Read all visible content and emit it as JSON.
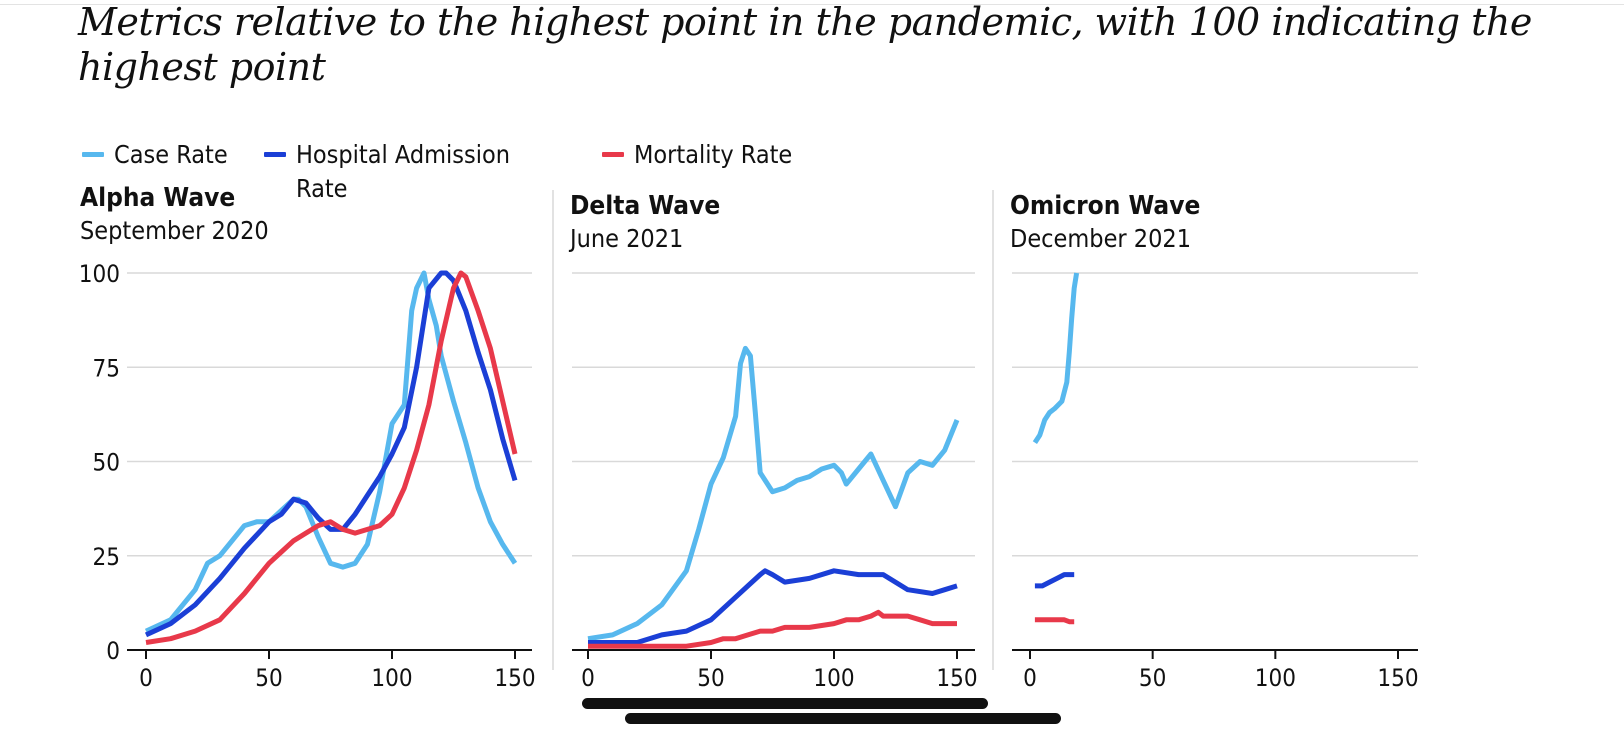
{
  "title": "Metrics relative to the highest point in the pandemic, with 100 indicating the highest point",
  "colors": {
    "case": "#57b8ee",
    "hospital": "#1b3fd6",
    "mortality": "#e8394a",
    "grid": "#d9d9d9",
    "axis": "#111111"
  },
  "legend": [
    {
      "label": "Case Rate",
      "color": "#57b8ee"
    },
    {
      "label": "Hospital Admission Rate",
      "color": "#1b3fd6"
    },
    {
      "label": "Mortality Rate",
      "color": "#e8394a"
    }
  ],
  "chart_data": [
    {
      "type": "line",
      "title": "Alpha Wave",
      "subtitle": "September 2020",
      "xlim": [
        0,
        150
      ],
      "ylim": [
        0,
        100
      ],
      "xticks": [
        0,
        50,
        100,
        150
      ],
      "yticks": [
        0,
        25,
        50,
        75,
        100
      ],
      "series": [
        {
          "name": "Case Rate",
          "color": "#57b8ee",
          "x": [
            0,
            10,
            20,
            25,
            30,
            35,
            40,
            45,
            50,
            55,
            60,
            62,
            65,
            70,
            75,
            80,
            85,
            90,
            95,
            100,
            105,
            108,
            110,
            113,
            115,
            118,
            120,
            125,
            130,
            135,
            140,
            145,
            150
          ],
          "y": [
            5,
            8,
            16,
            23,
            25,
            29,
            33,
            34,
            34,
            37,
            40,
            40,
            38,
            30,
            23,
            22,
            23,
            28,
            42,
            60,
            65,
            90,
            96,
            100,
            93,
            86,
            78,
            66,
            55,
            43,
            34,
            28,
            23
          ]
        },
        {
          "name": "Hospital Admission Rate",
          "color": "#1b3fd6",
          "x": [
            0,
            10,
            20,
            30,
            40,
            50,
            55,
            60,
            65,
            70,
            75,
            80,
            85,
            90,
            95,
            100,
            105,
            110,
            115,
            120,
            122,
            125,
            130,
            135,
            140,
            145,
            150
          ],
          "y": [
            4,
            7,
            12,
            19,
            27,
            34,
            36,
            40,
            39,
            35,
            32,
            32,
            36,
            41,
            46,
            52,
            59,
            75,
            96,
            100,
            100,
            98,
            90,
            79,
            69,
            56,
            45
          ]
        },
        {
          "name": "Mortality Rate",
          "color": "#e8394a",
          "x": [
            0,
            10,
            20,
            30,
            40,
            50,
            55,
            60,
            65,
            70,
            75,
            80,
            85,
            90,
            95,
            100,
            105,
            110,
            115,
            120,
            125,
            128,
            130,
            135,
            140,
            145,
            150
          ],
          "y": [
            2,
            3,
            5,
            8,
            15,
            23,
            26,
            29,
            31,
            33,
            34,
            32,
            31,
            32,
            33,
            36,
            43,
            53,
            65,
            82,
            96,
            100,
            99,
            90,
            80,
            66,
            52
          ]
        }
      ]
    },
    {
      "type": "line",
      "title": "Delta Wave",
      "subtitle": "June 2021",
      "xlim": [
        0,
        150
      ],
      "ylim": [
        0,
        100
      ],
      "xticks": [
        0,
        50,
        100,
        150
      ],
      "yticks": [
        0,
        25,
        50,
        75,
        100
      ],
      "series": [
        {
          "name": "Case Rate",
          "color": "#57b8ee",
          "x": [
            0,
            10,
            20,
            30,
            40,
            45,
            50,
            55,
            60,
            62,
            64,
            66,
            68,
            70,
            75,
            80,
            85,
            90,
            95,
            100,
            103,
            105,
            110,
            115,
            120,
            125,
            130,
            135,
            140,
            145,
            150
          ],
          "y": [
            3,
            4,
            7,
            12,
            21,
            32,
            44,
            51,
            62,
            76,
            80,
            78,
            63,
            47,
            42,
            43,
            45,
            46,
            48,
            49,
            47,
            44,
            48,
            52,
            45,
            38,
            47,
            50,
            49,
            53,
            61
          ]
        },
        {
          "name": "Hospital Admission Rate",
          "color": "#1b3fd6",
          "x": [
            0,
            10,
            20,
            30,
            40,
            50,
            60,
            65,
            70,
            72,
            75,
            80,
            90,
            100,
            110,
            120,
            130,
            140,
            145,
            150
          ],
          "y": [
            2,
            2,
            2,
            4,
            5,
            8,
            14,
            17,
            20,
            21,
            20,
            18,
            19,
            21,
            20,
            20,
            16,
            15,
            16,
            17
          ]
        },
        {
          "name": "Mortality Rate",
          "color": "#e8394a",
          "x": [
            0,
            20,
            40,
            50,
            55,
            60,
            65,
            70,
            75,
            80,
            90,
            100,
            105,
            110,
            115,
            118,
            120,
            125,
            130,
            135,
            140,
            150
          ],
          "y": [
            1,
            1,
            1,
            2,
            3,
            3,
            4,
            5,
            5,
            6,
            6,
            7,
            8,
            8,
            9,
            10,
            9,
            9,
            9,
            8,
            7,
            7
          ]
        }
      ]
    },
    {
      "type": "line",
      "title": "Omicron Wave",
      "subtitle": "December 2021",
      "xlim": [
        0,
        150
      ],
      "ylim": [
        0,
        100
      ],
      "xticks": [
        0,
        50,
        100,
        150
      ],
      "yticks": [
        0,
        25,
        50,
        75,
        100
      ],
      "series": [
        {
          "name": "Case Rate",
          "color": "#57b8ee",
          "x": [
            2,
            4,
            6,
            8,
            10,
            13,
            15,
            16,
            17,
            18,
            19
          ],
          "y": [
            55,
            57,
            61,
            63,
            64,
            66,
            71,
            79,
            88,
            96,
            100
          ]
        },
        {
          "name": "Hospital Admission Rate",
          "color": "#1b3fd6",
          "x": [
            2,
            5,
            8,
            11,
            14,
            18
          ],
          "y": [
            17,
            17,
            18,
            19,
            20,
            20
          ]
        },
        {
          "name": "Mortality Rate",
          "color": "#e8394a",
          "x": [
            2,
            6,
            10,
            14,
            16,
            18
          ],
          "y": [
            8,
            8,
            8,
            8,
            7.5,
            7.5
          ]
        }
      ]
    }
  ]
}
